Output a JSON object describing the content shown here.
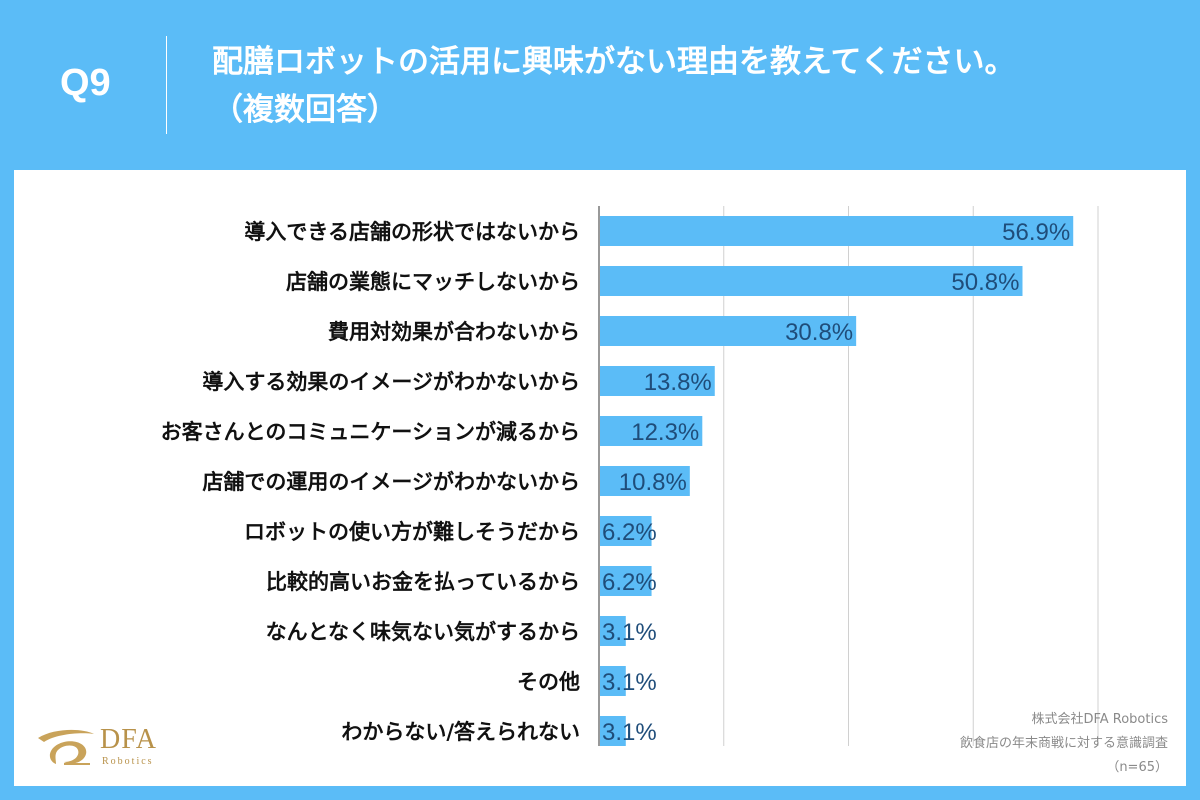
{
  "header": {
    "q_label": "Q9",
    "title": "配膳ロボットの活用に興味がない理由を教えてください。\n（複数回答）"
  },
  "chart_data": {
    "type": "bar",
    "orientation": "horizontal",
    "categories": [
      "導入できる店舗の形状ではないから",
      "店舗の業態にマッチしないから",
      "費用対効果が合わないから",
      "導入する効果のイメージがわかないから",
      "お客さんとのコミュニケーションが減るから",
      "店舗での運用のイメージがわかないから",
      "ロボットの使い方が難しそうだから",
      "比較的高いお金を払っているから",
      "なんとなく味気ない気がするから",
      "その他",
      "わからない/答えられない"
    ],
    "values": [
      56.9,
      50.8,
      30.8,
      13.8,
      12.3,
      10.8,
      6.2,
      6.2,
      3.1,
      3.1,
      3.1
    ],
    "value_labels": [
      "56.9%",
      "50.8%",
      "30.8%",
      "13.8%",
      "12.3%",
      "10.8%",
      "6.2%",
      "6.2%",
      "3.1%",
      "3.1%",
      "3.1%"
    ],
    "xlim": [
      0,
      60
    ],
    "grid": true,
    "bar_color": "#5bbcf7",
    "label_color": "#1f4d7a"
  },
  "source": {
    "company": "株式会社DFA Robotics",
    "survey": "飲食店の年末商戦に対する意識調査",
    "n": "（n=65）"
  },
  "logo": {
    "name": "DFA",
    "sub": "Robotics"
  },
  "colors": {
    "background": "#5bbcf7",
    "bar": "#5bbcf7",
    "value_text": "#1f4d7a",
    "logo": "#b8924a"
  }
}
